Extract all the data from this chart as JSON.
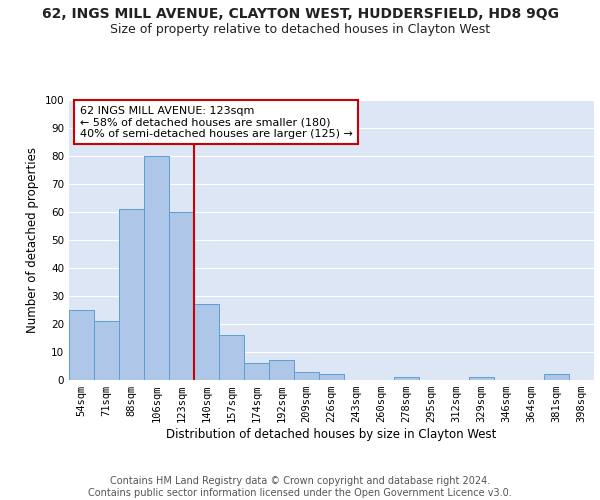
{
  "title": "62, INGS MILL AVENUE, CLAYTON WEST, HUDDERSFIELD, HD8 9QG",
  "subtitle": "Size of property relative to detached houses in Clayton West",
  "xlabel": "Distribution of detached houses by size in Clayton West",
  "ylabel": "Number of detached properties",
  "bar_labels": [
    "54sqm",
    "71sqm",
    "88sqm",
    "106sqm",
    "123sqm",
    "140sqm",
    "157sqm",
    "174sqm",
    "192sqm",
    "209sqm",
    "226sqm",
    "243sqm",
    "260sqm",
    "278sqm",
    "295sqm",
    "312sqm",
    "329sqm",
    "346sqm",
    "364sqm",
    "381sqm",
    "398sqm"
  ],
  "bar_values": [
    25,
    21,
    61,
    80,
    60,
    27,
    16,
    6,
    7,
    3,
    2,
    0,
    0,
    1,
    0,
    0,
    1,
    0,
    0,
    2,
    0
  ],
  "bar_color": "#aec6e8",
  "bar_edge_color": "#5a9fd4",
  "vline_x": 4,
  "vline_color": "#cc0000",
  "annotation_text": "62 INGS MILL AVENUE: 123sqm\n← 58% of detached houses are smaller (180)\n40% of semi-detached houses are larger (125) →",
  "annotation_box_color": "#ffffff",
  "annotation_box_edge": "#cc0000",
  "ylim": [
    0,
    100
  ],
  "yticks": [
    0,
    10,
    20,
    30,
    40,
    50,
    60,
    70,
    80,
    90,
    100
  ],
  "plot_bg_color": "#dce6f5",
  "footer": "Contains HM Land Registry data © Crown copyright and database right 2024.\nContains public sector information licensed under the Open Government Licence v3.0.",
  "grid_color": "#ffffff",
  "title_fontsize": 10,
  "subtitle_fontsize": 9,
  "label_fontsize": 8.5,
  "tick_fontsize": 7.5,
  "footer_fontsize": 7
}
